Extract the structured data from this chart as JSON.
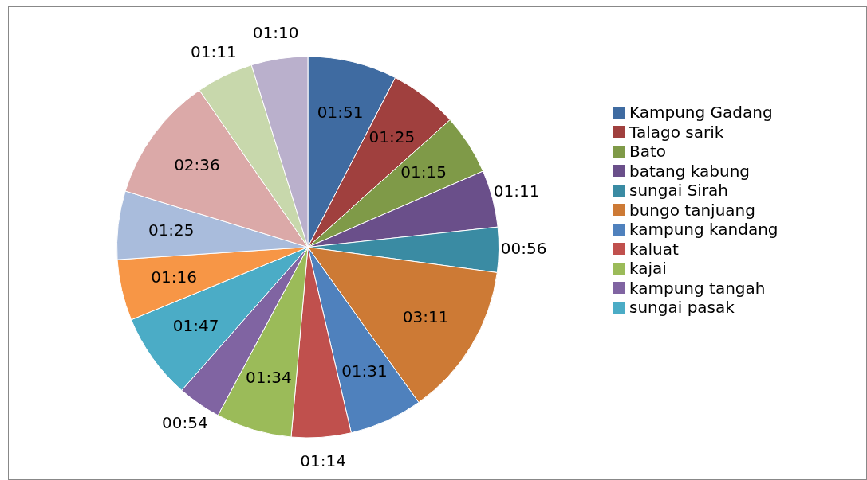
{
  "chart_data": {
    "type": "pie",
    "categories": [
      "Kampung Gadang",
      "Talago sarik",
      "Bato",
      "batang kabung",
      "sungai Sirah",
      "bungo tanjuang",
      "kampung kandang",
      "kaluat",
      "kajai",
      "kampung tangah",
      "sungai pasak",
      null,
      null,
      null,
      null,
      null
    ],
    "values": [
      111,
      85,
      75,
      71,
      56,
      191,
      91,
      74,
      94,
      54,
      107,
      76,
      85,
      156,
      71,
      70
    ],
    "value_labels": [
      "01:51",
      "01:25",
      "01:15",
      "01:11",
      "00:56",
      "03:11",
      "01:31",
      "01:14",
      "01:34",
      "00:54",
      "01:47",
      "01:16",
      "01:25",
      "02:36",
      "01:11",
      "01:10"
    ],
    "colors": [
      "#3f6ba1",
      "#a0403e",
      "#7f9a48",
      "#6a4f8a",
      "#3a8ba3",
      "#cd7a35",
      "#4f81bd",
      "#c0504d",
      "#9bbb59",
      "#8064a2",
      "#4bacc6",
      "#f79646",
      "#a9bcdc",
      "#dba9a8",
      "#c8d8ac",
      "#bab0cc"
    ],
    "legend": "right"
  }
}
